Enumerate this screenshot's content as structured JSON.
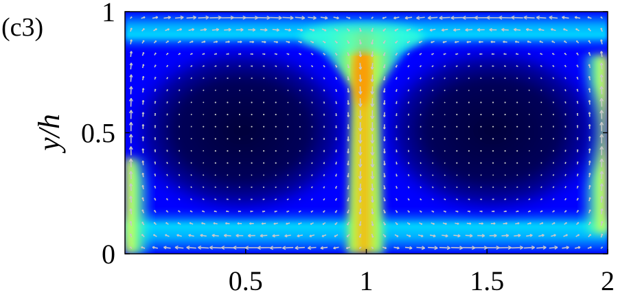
{
  "panel_label": "(c3)",
  "colors": {
    "colormap": [
      "#00007f",
      "#0000ff",
      "#007fff",
      "#00ffff",
      "#7fff7f",
      "#ffff00",
      "#ff7f00"
    ],
    "arrow": "#c8c8c8"
  },
  "chart_data": {
    "type": "heatmap",
    "subtype": "field-with-velocity-vectors",
    "xlim": [
      0,
      2
    ],
    "ylim": [
      0,
      1
    ],
    "xticks": [
      0.5,
      1,
      1.5,
      2
    ],
    "xtick_labels": [
      "0.5",
      "1",
      "1.5",
      "2"
    ],
    "yticks": [
      0,
      0.5,
      1
    ],
    "ytick_labels": [
      "0",
      "0.5",
      "1"
    ],
    "xlabel": "",
    "ylabel": "y/h",
    "title": "",
    "colormap": "jet",
    "grid": false,
    "features": {
      "cell_centers": [
        [
          0.5,
          0.5
        ],
        [
          1.5,
          0.5
        ]
      ],
      "plume_x": [
        0,
        1,
        2
      ]
    }
  }
}
